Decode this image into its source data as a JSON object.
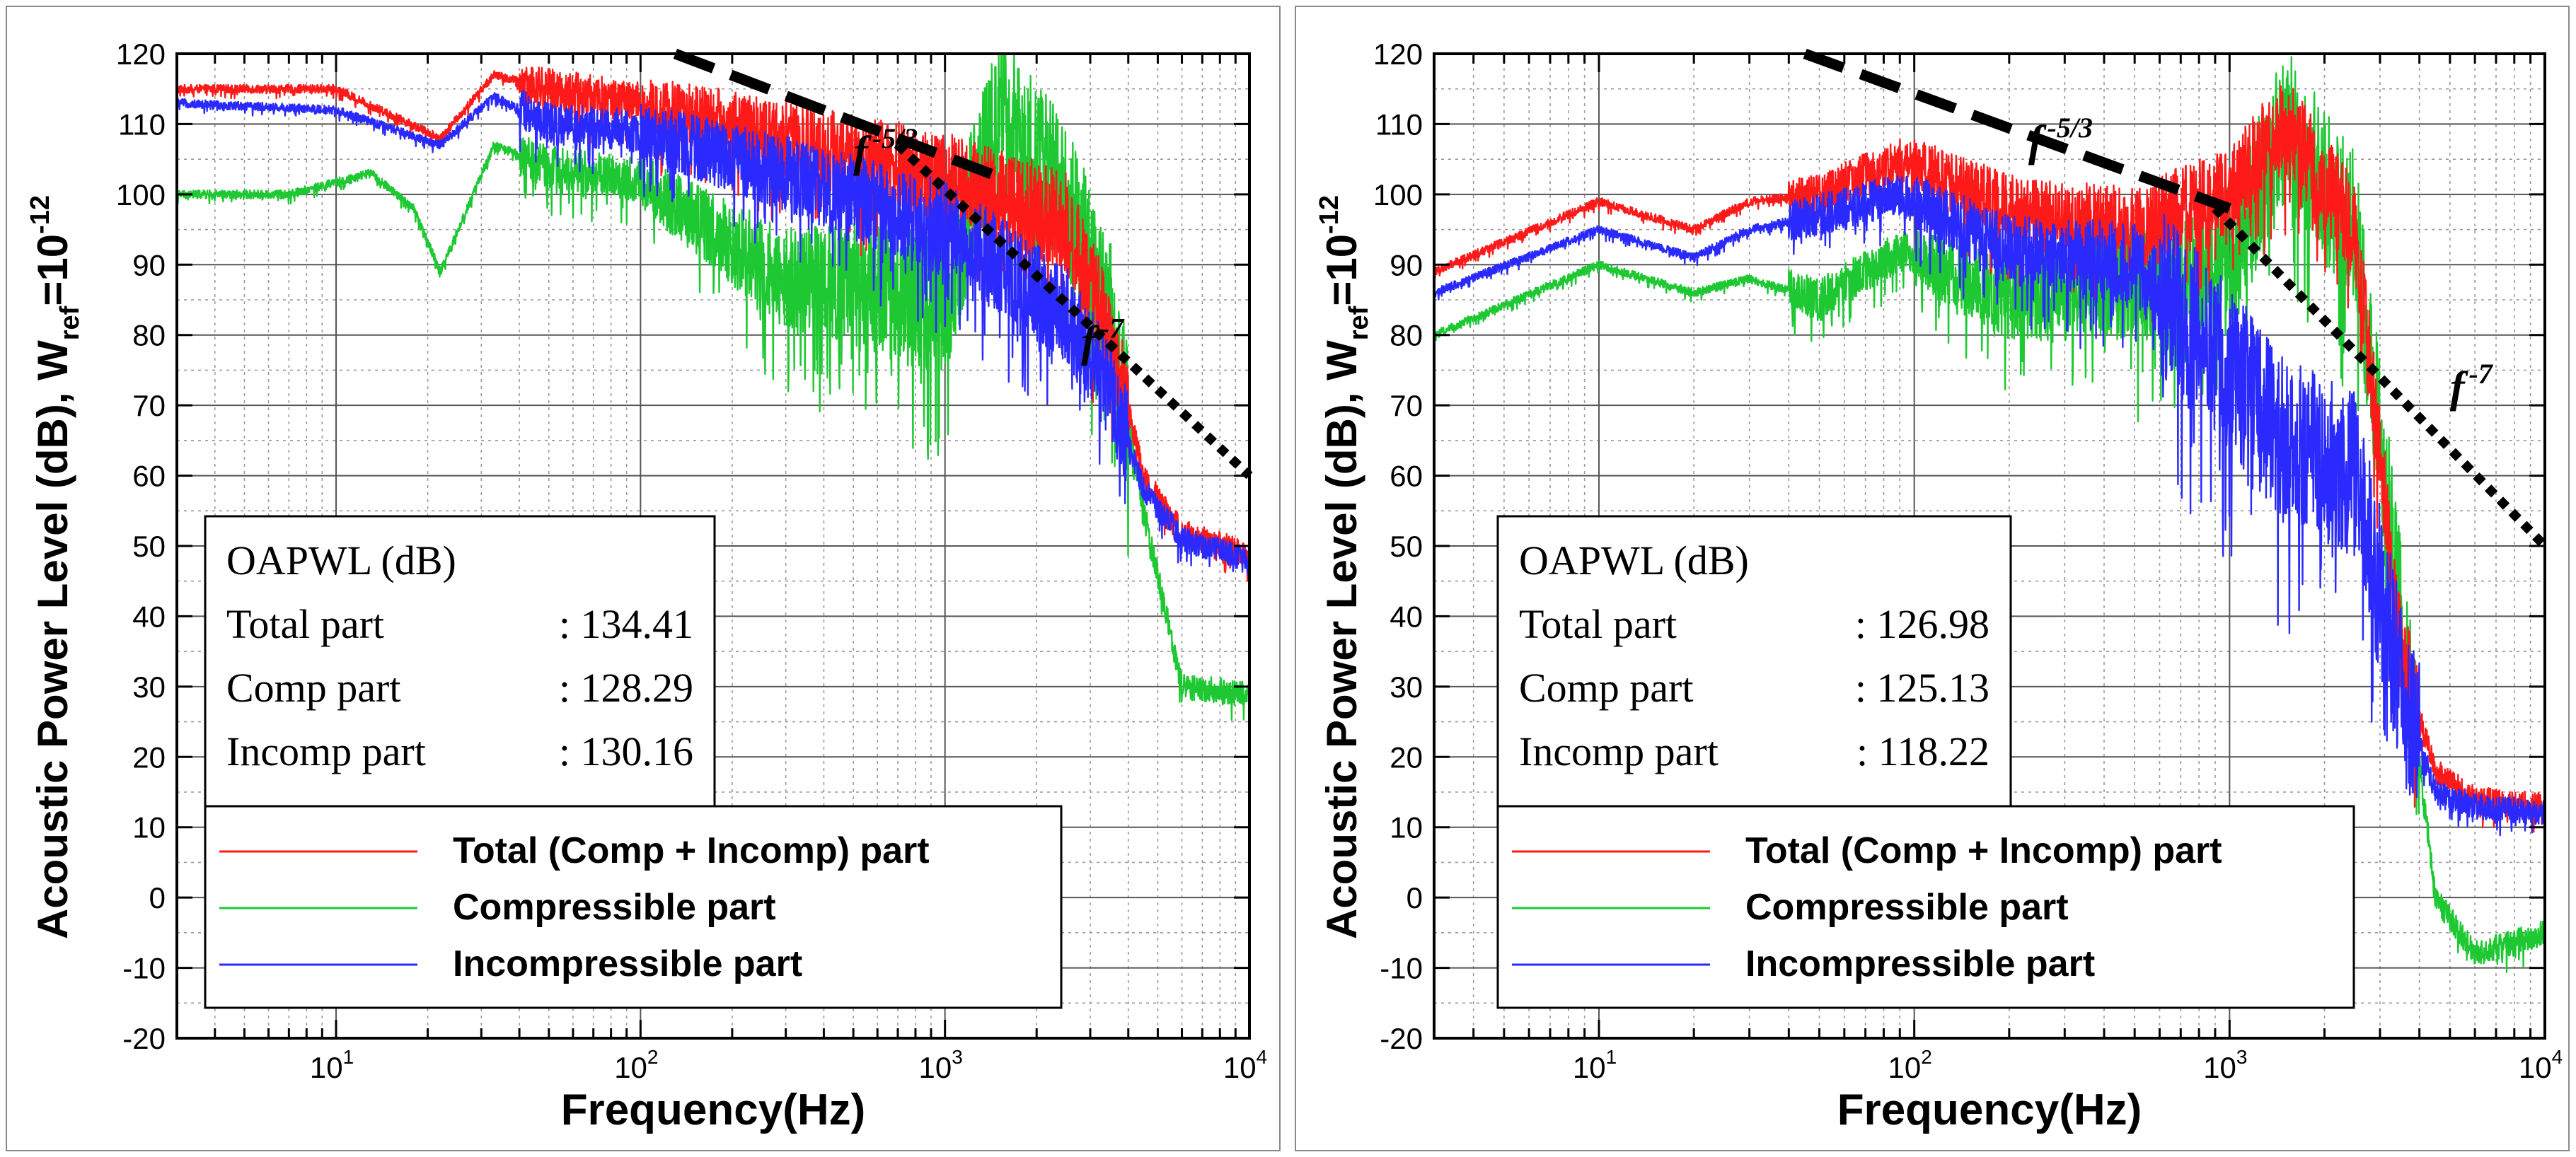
{
  "colors": {
    "total": "#ff1a1a",
    "compressible": "#1ec832",
    "incompressible": "#2a2aff"
  },
  "chart_data": [
    {
      "type": "line",
      "xscale": "log",
      "xlabel": "Frequency(Hz)",
      "ylabel_main": "Acoustic Power Level (dB), W",
      "ylabel_sub": "ref",
      "ylabel_eq": "=10",
      "ylabel_exp": "-12",
      "xlim": [
        3,
        10000
      ],
      "ylim": [
        -20,
        120
      ],
      "yticks": [
        -20,
        -10,
        0,
        10,
        20,
        30,
        40,
        50,
        60,
        70,
        80,
        90,
        100,
        110,
        120
      ],
      "xticks": [
        {
          "base": "10",
          "exp": "1",
          "value": 10
        },
        {
          "base": "10",
          "exp": "2",
          "value": 100
        },
        {
          "base": "10",
          "exp": "3",
          "value": 1000
        },
        {
          "base": "10",
          "exp": "4",
          "value": 10000
        }
      ],
      "oapwl": {
        "title": "OAPWL (dB)",
        "rows": [
          {
            "label": "Total part",
            "sep": ":",
            "value": "134.41"
          },
          {
            "label": "Comp part",
            "sep": ":",
            "value": "128.29"
          },
          {
            "label": "Incomp part",
            "sep": ":",
            "value": "130.16"
          }
        ]
      },
      "legend": [
        "Total (Comp + Incomp) part",
        "Compressible part",
        "Incompressible part"
      ],
      "slopes": [
        {
          "label": "f",
          "exp": "-5/3",
          "style": "dashed",
          "x1": 130,
          "y1": 120,
          "x2": 1500,
          "y2": 102.5
        },
        {
          "label": "f",
          "exp": "-7",
          "style": "dotted",
          "x1": 700,
          "y1": 107,
          "x2": 10000,
          "y2": 60
        }
      ],
      "series": [
        {
          "name": "Total (Comp + Incomp) part",
          "x": [
            3,
            10,
            22,
            33,
            50,
            100,
            300,
            1000,
            1500,
            2500,
            3500,
            4500,
            6000,
            10000
          ],
          "y": [
            115,
            115,
            108,
            117,
            115,
            113,
            108,
            102,
            100,
            96,
            80,
            60,
            52,
            49
          ]
        },
        {
          "name": "Compressible part",
          "x": [
            3,
            7,
            13,
            18,
            22,
            33,
            50,
            100,
            300,
            1000,
            1500,
            2500,
            3500,
            4500,
            6000,
            10000
          ],
          "y": [
            100,
            100,
            103,
            98,
            89,
            107,
            104,
            102,
            88,
            85,
            112,
            100,
            82,
            55,
            30,
            29
          ]
        },
        {
          "name": "Incompressible part",
          "x": [
            3,
            10,
            22,
            33,
            50,
            100,
            300,
            1000,
            1500,
            2500,
            3500,
            4500,
            6000,
            10000
          ],
          "y": [
            113,
            112,
            107,
            114,
            110,
            109,
            103,
            95,
            90,
            83,
            72,
            58,
            51,
            48
          ]
        }
      ]
    },
    {
      "type": "line",
      "xscale": "log",
      "xlabel": "Frequency(Hz)",
      "ylabel_main": "Acoustic Power Level (dB), W",
      "ylabel_sub": "ref",
      "ylabel_eq": "=10",
      "ylabel_exp": "-12",
      "xlim": [
        3,
        10000
      ],
      "ylim": [
        -20,
        120
      ],
      "yticks": [
        -20,
        -10,
        0,
        10,
        20,
        30,
        40,
        50,
        60,
        70,
        80,
        90,
        100,
        110,
        120
      ],
      "xticks": [
        {
          "base": "10",
          "exp": "1",
          "value": 10
        },
        {
          "base": "10",
          "exp": "2",
          "value": 100
        },
        {
          "base": "10",
          "exp": "3",
          "value": 1000
        },
        {
          "base": "10",
          "exp": "4",
          "value": 10000
        }
      ],
      "oapwl": {
        "title": "OAPWL (dB)",
        "rows": [
          {
            "label": "Total part",
            "sep": ":",
            "value": "126.98"
          },
          {
            "label": "Comp part",
            "sep": ":",
            "value": "125.13"
          },
          {
            "label": "Incomp part",
            "sep": ":",
            "value": "118.22"
          }
        ]
      },
      "legend": [
        "Total (Comp + Incomp) part",
        "Compressible part",
        "Incompressible part"
      ],
      "slopes": [
        {
          "label": "f",
          "exp": "-5/3",
          "style": "dashed",
          "x1": 45,
          "y1": 120,
          "x2": 1000,
          "y2": 98
        },
        {
          "label": "f",
          "exp": "-7",
          "style": "dotted",
          "x1": 900,
          "y1": 98,
          "x2": 10000,
          "y2": 50
        }
      ],
      "series": [
        {
          "name": "Total (Comp + Incomp) part",
          "x": [
            3,
            10,
            20,
            30,
            50,
            90,
            200,
            500,
            1000,
            1500,
            2500,
            3500,
            4500,
            6000,
            10000
          ],
          "y": [
            89,
            99,
            95,
            99,
            100,
            105,
            98,
            95,
            100,
            110,
            95,
            35,
            18,
            14,
            13
          ]
        },
        {
          "name": "Compressible part",
          "x": [
            3,
            10,
            20,
            30,
            50,
            90,
            200,
            500,
            1000,
            1500,
            2500,
            3500,
            4500,
            6000,
            10000
          ],
          "y": [
            80,
            90,
            86,
            88,
            85,
            92,
            85,
            88,
            90,
            110,
            95,
            40,
            0,
            -8,
            -5
          ]
        },
        {
          "name": "Incompressible part",
          "x": [
            3,
            10,
            20,
            30,
            50,
            90,
            200,
            500,
            1000,
            1500,
            2500,
            3500,
            4500,
            6000,
            10000
          ],
          "y": [
            86,
            95,
            91,
            95,
            97,
            100,
            92,
            90,
            75,
            65,
            60,
            30,
            15,
            13,
            12
          ]
        }
      ]
    }
  ]
}
